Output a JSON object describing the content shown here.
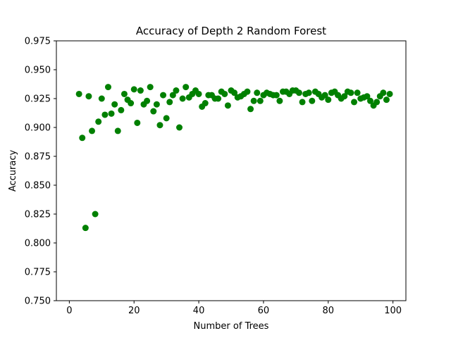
{
  "chart_data": {
    "type": "scatter",
    "title": "Accuracy of Depth 2 Random Forest",
    "xlabel": "Number of Trees",
    "ylabel": "Accuracy",
    "xlim": [
      -4,
      104
    ],
    "ylim": [
      0.75,
      0.975
    ],
    "xticks": [
      0,
      20,
      40,
      60,
      80,
      100
    ],
    "xtick_labels": [
      "0",
      "20",
      "40",
      "60",
      "80",
      "100"
    ],
    "yticks": [
      0.75,
      0.775,
      0.8,
      0.825,
      0.85,
      0.875,
      0.9,
      0.925,
      0.95,
      0.975
    ],
    "ytick_labels": [
      "0.750",
      "0.775",
      "0.800",
      "0.825",
      "0.850",
      "0.875",
      "0.900",
      "0.925",
      "0.950",
      "0.975"
    ],
    "grid": false,
    "marker_color": "#008000",
    "series": [
      {
        "x": [
          3,
          4,
          5,
          6,
          7,
          8,
          9,
          10,
          11,
          12,
          13,
          14,
          15,
          16,
          17,
          18,
          19,
          20,
          21,
          22,
          23,
          24,
          25,
          26,
          27,
          28,
          29,
          30,
          31,
          32,
          33,
          34,
          35,
          36,
          37,
          38,
          39,
          40,
          41,
          42,
          43,
          44,
          45,
          46,
          47,
          48,
          49,
          50,
          51,
          52,
          53,
          54,
          55,
          56,
          57,
          58,
          59,
          60,
          61,
          62,
          63,
          64,
          65,
          66,
          67,
          68,
          69,
          70,
          71,
          72,
          73,
          74,
          75,
          76,
          77,
          78,
          79,
          80,
          81,
          82,
          83,
          84,
          85,
          86,
          87,
          88,
          89,
          90,
          91,
          92,
          93,
          94,
          95,
          96,
          97,
          98,
          99
        ],
        "y": [
          0.929,
          0.891,
          0.813,
          0.927,
          0.897,
          0.825,
          0.905,
          0.925,
          0.911,
          0.935,
          0.912,
          0.92,
          0.897,
          0.915,
          0.929,
          0.924,
          0.921,
          0.933,
          0.904,
          0.932,
          0.92,
          0.923,
          0.935,
          0.914,
          0.92,
          0.902,
          0.928,
          0.908,
          0.922,
          0.928,
          0.932,
          0.9,
          0.925,
          0.935,
          0.926,
          0.929,
          0.932,
          0.929,
          0.918,
          0.921,
          0.928,
          0.928,
          0.925,
          0.925,
          0.931,
          0.929,
          0.919,
          0.932,
          0.93,
          0.926,
          0.927,
          0.929,
          0.931,
          0.916,
          0.923,
          0.93,
          0.923,
          0.928,
          0.93,
          0.929,
          0.928,
          0.928,
          0.923,
          0.931,
          0.931,
          0.929,
          0.932,
          0.932,
          0.93,
          0.922,
          0.929,
          0.93,
          0.923,
          0.931,
          0.929,
          0.926,
          0.928,
          0.924,
          0.93,
          0.931,
          0.928,
          0.925,
          0.927,
          0.931,
          0.93,
          0.922,
          0.93,
          0.925,
          0.926,
          0.927,
          0.923,
          0.919,
          0.922,
          0.927,
          0.93,
          0.924,
          0.929
        ]
      }
    ]
  }
}
